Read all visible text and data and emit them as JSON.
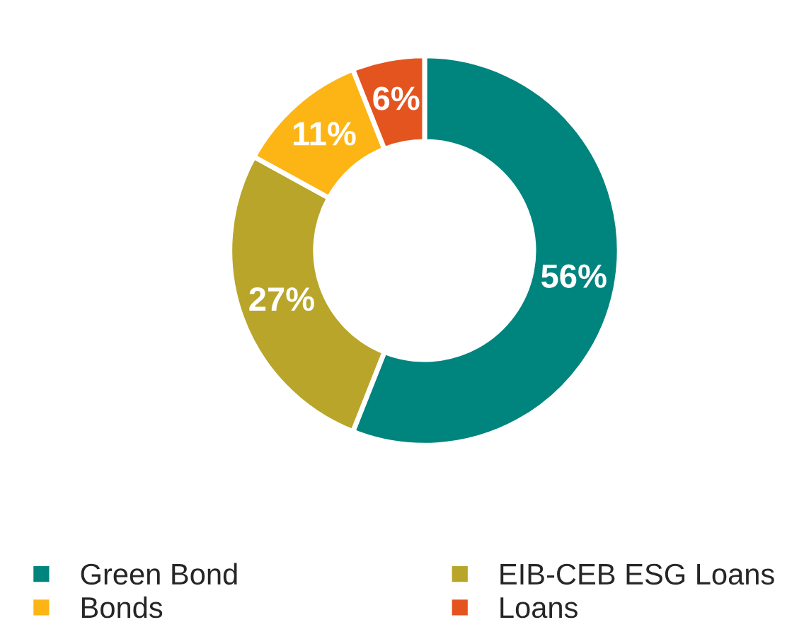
{
  "chart_data": {
    "type": "donut",
    "categories": [
      "Green Bond",
      "EIB-CEB ESG Loans",
      "Bonds",
      "Loans"
    ],
    "values": [
      56,
      27,
      11,
      6
    ],
    "value_labels": [
      "56%",
      "27%",
      "11%",
      "6%"
    ],
    "colors": [
      "#00847e",
      "#b8a52a",
      "#fdb515",
      "#e4541f"
    ],
    "legend": "bottom"
  }
}
